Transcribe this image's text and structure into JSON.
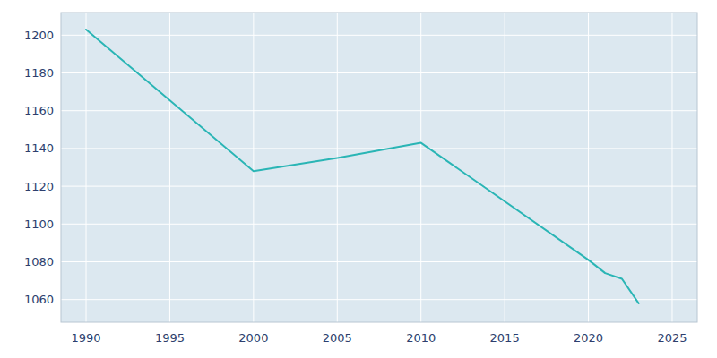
{
  "chart_data": {
    "type": "line",
    "x": [
      1990,
      2000,
      2005,
      2010,
      2020,
      2021,
      2022,
      2023
    ],
    "values": [
      1203,
      1128,
      1135,
      1143,
      1081,
      1074,
      1071,
      1058
    ],
    "color": "#2ab5b5",
    "xlim": [
      1988.5,
      2026.5
    ],
    "ylim": [
      1048,
      1212
    ],
    "xticks": [
      1990,
      1995,
      2000,
      2005,
      2010,
      2015,
      2020,
      2025
    ],
    "yticks": [
      1060,
      1080,
      1100,
      1120,
      1140,
      1160,
      1180,
      1200
    ],
    "grid": true
  }
}
